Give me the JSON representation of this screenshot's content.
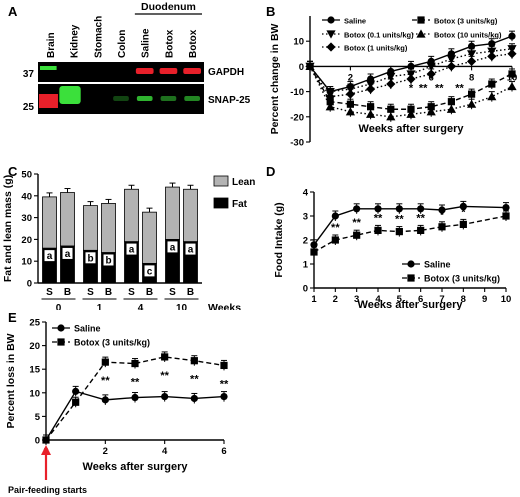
{
  "figure": {
    "panels": [
      {
        "key": "A"
      },
      {
        "key": "B"
      },
      {
        "key": "C"
      },
      {
        "key": "D"
      },
      {
        "key": "E"
      }
    ]
  },
  "blot": {
    "lane_labels": [
      "Brain",
      "Kidney",
      "Stomach",
      "Colon",
      "Saline",
      "Botox",
      "Botox"
    ],
    "group_label": "Duodenum",
    "markers": [
      "37",
      "25"
    ],
    "rows": [
      "GAPDH",
      "SNAP-25"
    ],
    "band_color_red": "#e8202a",
    "band_color_green": "#3be03b",
    "gapdh_intensity": [
      0,
      0,
      0,
      0,
      1,
      1,
      1
    ],
    "snap25_intensity": [
      0,
      0,
      0,
      0.3,
      0.8,
      0.5,
      0.6
    ]
  },
  "chart_data": [
    {
      "type": "line",
      "panel": "B",
      "ylabel": "Percent change in BW",
      "xlabel": "Weeks after surgery",
      "x": [
        0,
        1,
        2,
        3,
        4,
        5,
        6,
        7,
        8,
        9,
        10
      ],
      "xticks": [
        2,
        4,
        6,
        8,
        10
      ],
      "yticks": [
        10,
        0,
        -10,
        -20,
        -30
      ],
      "ylim": [
        -30,
        20
      ],
      "xlim": [
        0,
        10
      ],
      "legend_position": "top",
      "series": [
        {
          "name": "Saline",
          "marker": "circle",
          "dash": "solid",
          "values": [
            0,
            -10,
            -8,
            -5,
            -2,
            0,
            2,
            5,
            8,
            9,
            12
          ]
        },
        {
          "name": "Botox (0.1 units/kg)",
          "marker": "triangle-down",
          "dash": "dotted",
          "values": [
            0,
            -10,
            -9,
            -7,
            -4,
            -3,
            0,
            3,
            5,
            6,
            7
          ]
        },
        {
          "name": "Botox (1 units/kg)",
          "marker": "diamond",
          "dash": "dotted",
          "values": [
            0,
            -12,
            -11,
            -9,
            -7,
            -5,
            -3,
            0,
            2,
            4,
            5
          ]
        },
        {
          "name": "Botox (3 units/kg)",
          "marker": "square",
          "dash": "dashed",
          "values": [
            0,
            -14,
            -15,
            -16,
            -17,
            -17,
            -16,
            -14,
            -11,
            -7,
            -3
          ]
        },
        {
          "name": "Botox (10 units/kg)",
          "marker": "triangle-up",
          "dash": "dotted",
          "values": [
            0,
            -16,
            -18,
            -19,
            -20,
            -19,
            -18,
            -17,
            -15,
            -12,
            -8
          ]
        }
      ],
      "significance": [
        {
          "x": 5,
          "label": "*"
        },
        {
          "x": 5.6,
          "label": "**"
        },
        {
          "x": 6.4,
          "label": "**"
        },
        {
          "x": 7.4,
          "label": "**"
        }
      ]
    },
    {
      "type": "bar",
      "panel": "C",
      "ylabel": "Fat and lean mass (g)",
      "xlabel": "Weeks",
      "categories": [
        "S",
        "B",
        "S",
        "B",
        "S",
        "B",
        "S",
        "B"
      ],
      "group_labels": [
        "0",
        "1",
        "4",
        "10"
      ],
      "yticks": [
        0,
        10,
        20,
        30,
        40,
        50
      ],
      "ylim": [
        0,
        50
      ],
      "series": [
        {
          "name": "Fat",
          "values": [
            16,
            17,
            15,
            14,
            19,
            9,
            20,
            19
          ],
          "color": "#000000"
        },
        {
          "name": "Lean",
          "values": [
            23.5,
            24.5,
            20.5,
            22.5,
            24,
            23.5,
            24,
            24
          ],
          "color": "#b3b3b3"
        }
      ],
      "fat_letters": [
        "a",
        "a",
        "b",
        "b",
        "a",
        "c",
        "a",
        "a"
      ],
      "legend_position": "top-right"
    },
    {
      "type": "line",
      "panel": "D",
      "ylabel": "Food Intake (g)",
      "xlabel": "Weeks after surgery",
      "x": [
        1,
        2,
        3,
        4,
        5,
        6,
        7,
        8,
        10
      ],
      "xticks": [
        1,
        2,
        3,
        4,
        5,
        6,
        7,
        8,
        9,
        10
      ],
      "yticks": [
        0,
        1,
        2,
        3,
        4
      ],
      "ylim": [
        0,
        4
      ],
      "xlim": [
        1,
        10
      ],
      "legend_position": "bottom-right",
      "series": [
        {
          "name": "Saline",
          "marker": "circle",
          "dash": "solid",
          "values": [
            1.8,
            3.0,
            3.3,
            3.3,
            3.3,
            3.3,
            3.25,
            3.4,
            3.35
          ]
        },
        {
          "name": "Botox (3 units/kg)",
          "marker": "square",
          "dash": "dashed",
          "values": [
            1.5,
            2.0,
            2.2,
            2.4,
            2.35,
            2.4,
            2.55,
            2.65,
            3.0
          ]
        }
      ],
      "significance": [
        {
          "x": 2,
          "label": "**"
        },
        {
          "x": 3,
          "label": "**"
        },
        {
          "x": 4,
          "label": "**"
        },
        {
          "x": 5,
          "label": "**"
        },
        {
          "x": 6,
          "label": "**"
        },
        {
          "x": 7,
          "label": "*"
        },
        {
          "x": 8,
          "label": "*"
        }
      ]
    },
    {
      "type": "line",
      "panel": "E",
      "ylabel": "Percent loss in BW",
      "xlabel": "Weeks after surgery",
      "x": [
        0,
        1,
        2,
        3,
        4,
        5,
        6
      ],
      "xticks": [
        0,
        2,
        4,
        6
      ],
      "yticks": [
        0,
        5,
        10,
        15,
        20,
        25
      ],
      "ylim": [
        0,
        25
      ],
      "xlim": [
        0,
        6
      ],
      "legend_position": "top-left",
      "series": [
        {
          "name": "Saline",
          "marker": "circle",
          "dash": "solid",
          "values": [
            0,
            10.3,
            8.5,
            9,
            9.2,
            8.8,
            9.2
          ]
        },
        {
          "name": "Botox (3 units/kg)",
          "marker": "square",
          "dash": "dashed",
          "values": [
            0,
            8,
            16.5,
            16.2,
            17.6,
            16.8,
            15.8
          ]
        }
      ],
      "significance": [
        {
          "x": 2,
          "label": "**"
        },
        {
          "x": 3,
          "label": "**"
        },
        {
          "x": 4,
          "label": "**"
        },
        {
          "x": 5,
          "label": "**"
        },
        {
          "x": 6,
          "label": "**"
        }
      ],
      "annotation": "Pair-feeding starts",
      "annotation_color": "#e8202a"
    }
  ]
}
